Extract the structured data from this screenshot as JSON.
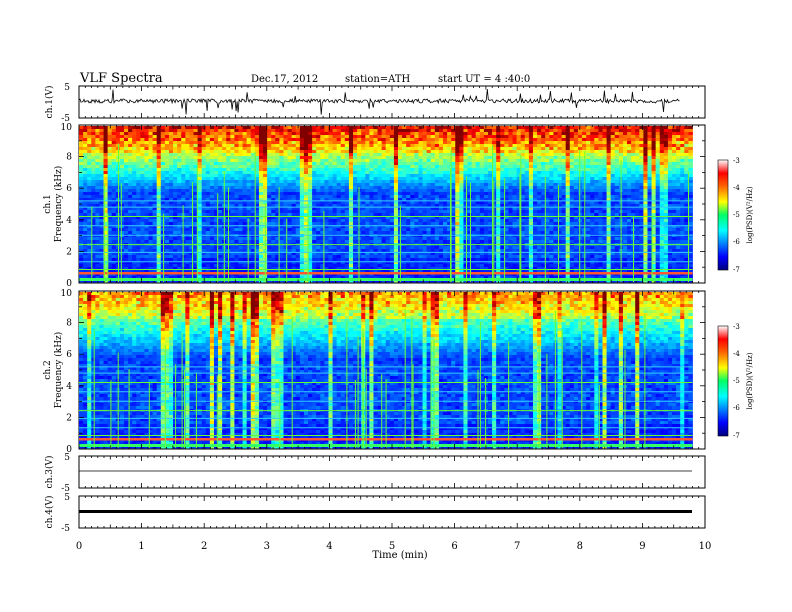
{
  "header": {
    "title": "VLF Spectra",
    "date": "Dec.17, 2012",
    "station": "station=ATH",
    "start": "start UT = 4 :40:0"
  },
  "chart_data": [
    {
      "type": "line",
      "panel": "ch1",
      "ylabel": "ch.1(V)",
      "ylim": [
        -5,
        5
      ],
      "yticks": [
        "5",
        "-5"
      ],
      "xlim": [
        0,
        10
      ],
      "description_level": 0.6
    },
    {
      "type": "heatmap",
      "panel": "ch1-spectrogram",
      "ylabel": [
        "ch.1",
        "Frequency (kHz)"
      ],
      "ylim": [
        0,
        10
      ],
      "yticks": [
        "0",
        "2",
        "4",
        "6",
        "8",
        "10"
      ],
      "xlim": [
        0,
        9.8
      ],
      "colorbar": {
        "label": "log(PSD)(V²/Hz)",
        "ticks": [
          "-3",
          "-4",
          "-5",
          "-6",
          "-7"
        ],
        "range": [
          -7,
          -3
        ]
      }
    },
    {
      "type": "heatmap",
      "panel": "ch2-spectrogram",
      "ylabel": [
        "ch.2",
        "Frequency (kHz)"
      ],
      "ylim": [
        0,
        10
      ],
      "yticks": [
        "0",
        "2",
        "4",
        "6",
        "8",
        "10"
      ],
      "xlim": [
        0,
        9.8
      ],
      "colorbar": {
        "label": "log(PSD)(V²/Hz)",
        "ticks": [
          "-3",
          "-4",
          "-5",
          "-6",
          "-7"
        ],
        "range": [
          -7,
          -3
        ]
      }
    },
    {
      "type": "line",
      "panel": "ch3",
      "ylabel": "ch.3(V)",
      "ylim": [
        -5,
        5
      ],
      "yticks": [
        "5",
        "-5"
      ],
      "xlim": [
        0,
        10
      ]
    },
    {
      "type": "line",
      "panel": "ch4",
      "ylabel": "ch.4(V)",
      "ylim": [
        -5,
        5
      ],
      "yticks": [
        "5",
        "-5"
      ],
      "xlim": [
        0,
        10
      ]
    }
  ],
  "xaxis": {
    "label": "Time (min)",
    "ticks": [
      "0",
      "1",
      "2",
      "3",
      "4",
      "5",
      "6",
      "7",
      "8",
      "9",
      "10"
    ]
  },
  "colors": {
    "trace": "#000000",
    "jet_low": "#00007f",
    "jet_high": "#7f0000"
  }
}
